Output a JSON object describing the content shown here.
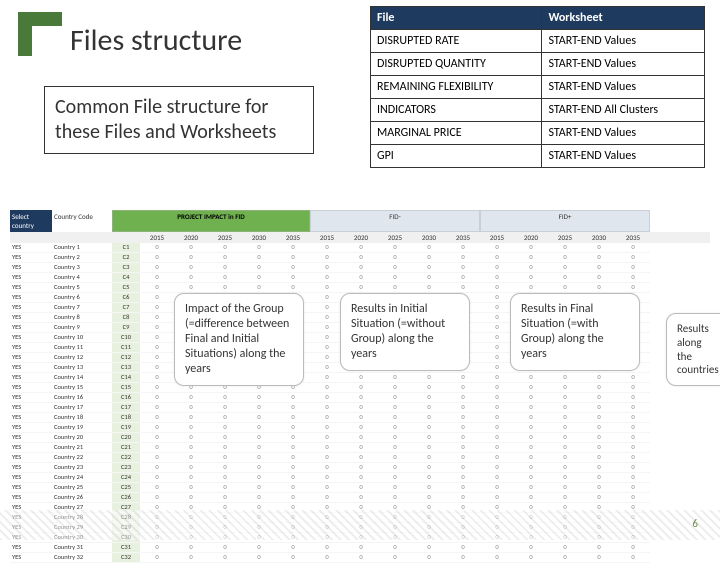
{
  "title": "Files structure",
  "subtitle": "Common File structure for these Files and Worksheets",
  "table": {
    "headers": [
      "File",
      "Worksheet"
    ],
    "rows": [
      [
        "DISRUPTED RATE",
        "START-END Values"
      ],
      [
        "DISRUPTED QUANTITY",
        "START-END Values"
      ],
      [
        "REMAINING FLEXIBILITY",
        "START-END Values"
      ],
      [
        "INDICATORS",
        "START-END All Clusters"
      ],
      [
        "MARGINAL PRICE",
        "START-END Values"
      ],
      [
        "GPI",
        "START-END Values"
      ]
    ]
  },
  "sheet": {
    "sel_label": "Select country",
    "cc_label": "Country Code",
    "group1": "PROJECT IMPACT in FID",
    "group2": "FID-",
    "group3": "FID+",
    "years": [
      "2015",
      "2020",
      "2025",
      "2030",
      "2035",
      "2015",
      "2020",
      "2025",
      "2030",
      "2035",
      "2015",
      "2020",
      "2025",
      "2030",
      "2035"
    ],
    "yes": "YES",
    "countries": [
      "Country 1",
      "Country 2",
      "Country 3",
      "Country 4",
      "Country 5",
      "Country 6",
      "Country 7",
      "Country 8",
      "Country 9",
      "Country 10",
      "Country 11",
      "Country 12",
      "Country 13",
      "Country 14",
      "Country 15",
      "Country 16",
      "Country 17",
      "Country 18",
      "Country 19",
      "Country 20",
      "Country 21",
      "Country 22",
      "Country 23",
      "Country 24",
      "Country 25",
      "Country 26",
      "Country 27",
      "Country 28",
      "Country 29",
      "Country 30",
      "Country 31",
      "Country 32"
    ],
    "codes": [
      "C1",
      "C2",
      "C3",
      "C4",
      "C5",
      "C6",
      "C7",
      "C8",
      "C9",
      "C10",
      "C11",
      "C12",
      "C13",
      "C14",
      "C15",
      "C16",
      "C17",
      "C18",
      "C19",
      "C20",
      "C21",
      "C22",
      "C23",
      "C24",
      "C25",
      "C26",
      "C27",
      "C28",
      "C29",
      "C30",
      "C31",
      "C32"
    ]
  },
  "callouts": {
    "c1": "Impact of the Group (=difference between Final and Initial Situations) along the years",
    "c2": "Results in Initial Situation (=without Group) along the years",
    "c3": "Results in Final Situation (=with Group) along the years",
    "c4": "Results along the countries"
  },
  "page": "6"
}
